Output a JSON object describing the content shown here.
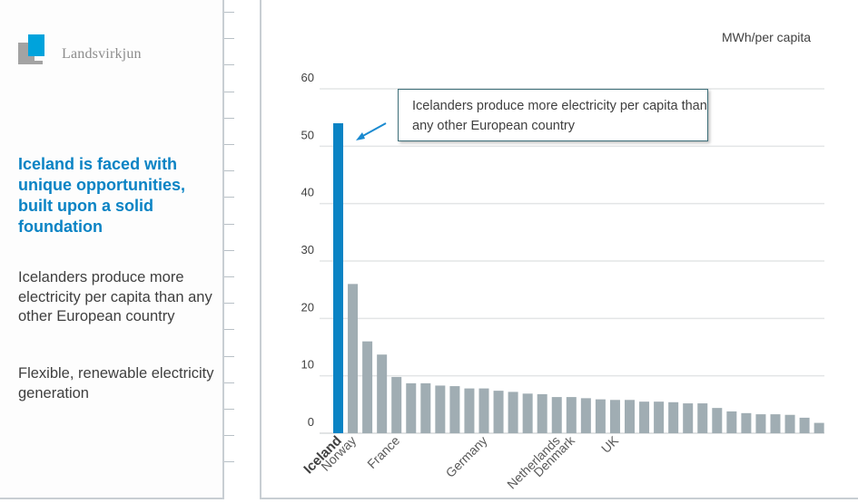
{
  "brand": {
    "name": "Landsvirkjun"
  },
  "left": {
    "headline": "Iceland is faced with unique opportunities, built upon a solid foundation",
    "points": [
      "Icelanders produce more electricity per capita than any other European country",
      "Flexible, renewable electricity generation"
    ]
  },
  "colors": {
    "highlight": "#0a83c4",
    "bar": "#a0adb3",
    "grid": "#e3e5e6"
  },
  "chart_data": {
    "type": "bar",
    "title": "",
    "unit_label": "MWh/per capita",
    "xlabel": "",
    "ylabel": "MWh/per capita",
    "ylim": [
      0,
      60
    ],
    "yticks": [
      0,
      10,
      20,
      30,
      40,
      50,
      60
    ],
    "grid": true,
    "highlight_index": 0,
    "annotation": "Icelanders produce more electricity per capita than any other European country",
    "categories": [
      "Iceland",
      "Norway",
      "",
      "",
      "France",
      "",
      "",
      "",
      "",
      "",
      "Germany",
      "",
      "",
      "",
      "",
      "Netherlands",
      "Denmark",
      "",
      "",
      "UK",
      "",
      "",
      "",
      "",
      "",
      "",
      "",
      "",
      "",
      "",
      "",
      "",
      "",
      ""
    ],
    "values": [
      54,
      26,
      16,
      13.7,
      9.8,
      8.7,
      8.7,
      8.3,
      8.2,
      7.8,
      7.8,
      7.4,
      7.2,
      6.9,
      6.8,
      6.3,
      6.3,
      6.1,
      5.9,
      5.8,
      5.8,
      5.5,
      5.5,
      5.4,
      5.2,
      5.2,
      4.4,
      3.8,
      3.5,
      3.3,
      3.3,
      3.2,
      2.7,
      1.8
    ]
  }
}
